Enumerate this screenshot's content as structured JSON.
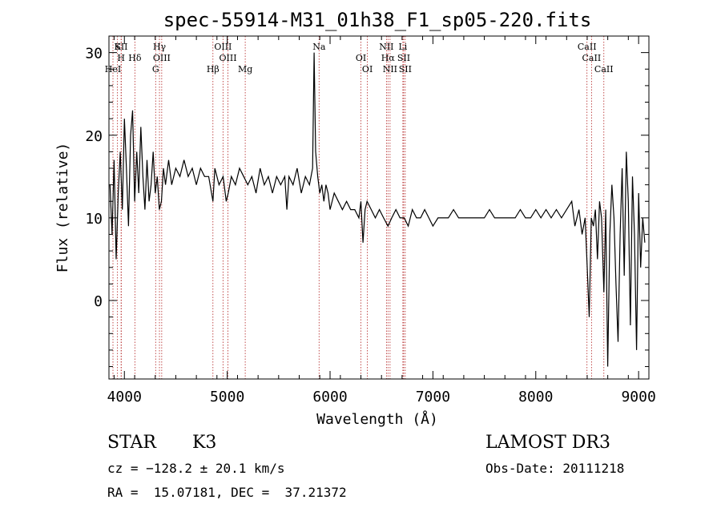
{
  "chart_data": {
    "type": "line",
    "title": "spec-55914-M31_01h38_F1_sp05-220.fits",
    "xlabel": "Wavelength (Å)",
    "ylabel": "Flux (relative)",
    "xlim": [
      3850,
      9100
    ],
    "ylim": [
      -9.5,
      32
    ],
    "xticks": [
      4000,
      5000,
      6000,
      7000,
      8000,
      9000
    ],
    "yticks": [
      0,
      10,
      20,
      30
    ],
    "grid": false,
    "series": [
      {
        "x": [
          3860,
          3880,
          3900,
          3920,
          3940,
          3960,
          3980,
          4000,
          4020,
          4040,
          4060,
          4080,
          4100,
          4120,
          4140,
          4160,
          4180,
          4200,
          4220,
          4240,
          4260,
          4280,
          4300,
          4320,
          4340,
          4360,
          4380,
          4400,
          4430,
          4460,
          4500,
          4540,
          4580,
          4620,
          4660,
          4700,
          4740,
          4780,
          4820,
          4861,
          4880,
          4920,
          4960,
          4990,
          5010,
          5040,
          5080,
          5120,
          5160,
          5200,
          5240,
          5280,
          5320,
          5360,
          5400,
          5440,
          5480,
          5520,
          5560,
          5580,
          5600,
          5640,
          5680,
          5720,
          5760,
          5800,
          5830,
          5845,
          5860,
          5880,
          5900,
          5920,
          5940,
          5960,
          5980,
          6000,
          6040,
          6080,
          6120,
          6160,
          6200,
          6240,
          6280,
          6300,
          6320,
          6340,
          6360,
          6400,
          6440,
          6480,
          6520,
          6563,
          6600,
          6640,
          6680,
          6720,
          6760,
          6800,
          6840,
          6880,
          6920,
          6960,
          7000,
          7050,
          7100,
          7150,
          7200,
          7250,
          7300,
          7350,
          7400,
          7450,
          7500,
          7550,
          7600,
          7650,
          7700,
          7750,
          7800,
          7850,
          7900,
          7950,
          8000,
          8050,
          8100,
          8150,
          8200,
          8250,
          8300,
          8350,
          8380,
          8420,
          8450,
          8480,
          8500,
          8520,
          8540,
          8560,
          8580,
          8600,
          8620,
          8640,
          8662,
          8680,
          8700,
          8720,
          8740,
          8760,
          8780,
          8800,
          8820,
          8840,
          8860,
          8880,
          8900,
          8920,
          8940,
          8960,
          8980,
          9000,
          9020,
          9040,
          9060
        ],
        "y": [
          14,
          8,
          17,
          5,
          13,
          18,
          11,
          22,
          16,
          9,
          20,
          23,
          12,
          18,
          13,
          21,
          15,
          11,
          17,
          12,
          14,
          18,
          13,
          15,
          11,
          12,
          16,
          14,
          17,
          14,
          16,
          15,
          17,
          15,
          16,
          14,
          16,
          15,
          15,
          12,
          16,
          14,
          15,
          12,
          13,
          15,
          14,
          16,
          15,
          14,
          15,
          13,
          16,
          14,
          15,
          13,
          15,
          14,
          15,
          11,
          15,
          14,
          16,
          13,
          15,
          14,
          16,
          30,
          18,
          15,
          13,
          14,
          12,
          14,
          13,
          11,
          13,
          12,
          11,
          12,
          11,
          11,
          10,
          12,
          7,
          11,
          12,
          11,
          10,
          11,
          10,
          9,
          10,
          11,
          10,
          10,
          9,
          11,
          10,
          10,
          11,
          10,
          9,
          10,
          10,
          10,
          11,
          10,
          10,
          10,
          10,
          10,
          10,
          11,
          10,
          10,
          10,
          10,
          10,
          11,
          10,
          10,
          11,
          10,
          11,
          10,
          11,
          10,
          11,
          12,
          9,
          11,
          8,
          10,
          4,
          -2,
          10,
          9,
          11,
          5,
          12,
          10,
          1,
          11,
          -8,
          8,
          14,
          10,
          2,
          -5,
          8,
          16,
          3,
          18,
          12,
          -3,
          15,
          8,
          -6,
          13,
          4,
          10,
          7
        ],
        "line_color": "#000000"
      }
    ],
    "spectral_lines": [
      {
        "wl": 3933,
        "label": "K"
      },
      {
        "wl": 3968,
        "label": "H"
      },
      {
        "wl": 3889,
        "label": "HeI"
      },
      {
        "wl": 3970,
        "label": "SII"
      },
      {
        "wl": 4102,
        "label": "Hδ"
      },
      {
        "wl": 4304,
        "label": "G"
      },
      {
        "wl": 4341,
        "label": "Hγ"
      },
      {
        "wl": 4363,
        "label": "OIII"
      },
      {
        "wl": 4861,
        "label": "Hβ"
      },
      {
        "wl": 4959,
        "label": "OIII"
      },
      {
        "wl": 5007,
        "label": "OIII"
      },
      {
        "wl": 5175,
        "label": "Mg"
      },
      {
        "wl": 5893,
        "label": "Na"
      },
      {
        "wl": 6300,
        "label": "OI"
      },
      {
        "wl": 6363,
        "label": "OI"
      },
      {
        "wl": 6548,
        "label": "NII"
      },
      {
        "wl": 6563,
        "label": "Hα"
      },
      {
        "wl": 6583,
        "label": "NII"
      },
      {
        "wl": 6708,
        "label": "Li"
      },
      {
        "wl": 6716,
        "label": "SII"
      },
      {
        "wl": 6731,
        "label": "SII"
      },
      {
        "wl": 8498,
        "label": "CaII"
      },
      {
        "wl": 8542,
        "label": "CaII"
      },
      {
        "wl": 8662,
        "label": "CaII"
      }
    ],
    "spectral_line_color": "#b22222"
  },
  "info": {
    "object_class": "STAR",
    "subclass": "K3",
    "survey": "LAMOST DR3",
    "velocity": "cz = −128.2 ± 20.1 km/s",
    "obs_date": "Obs-Date: 20111218",
    "coords": "RA =  15.07181, DEC =  37.21372"
  }
}
